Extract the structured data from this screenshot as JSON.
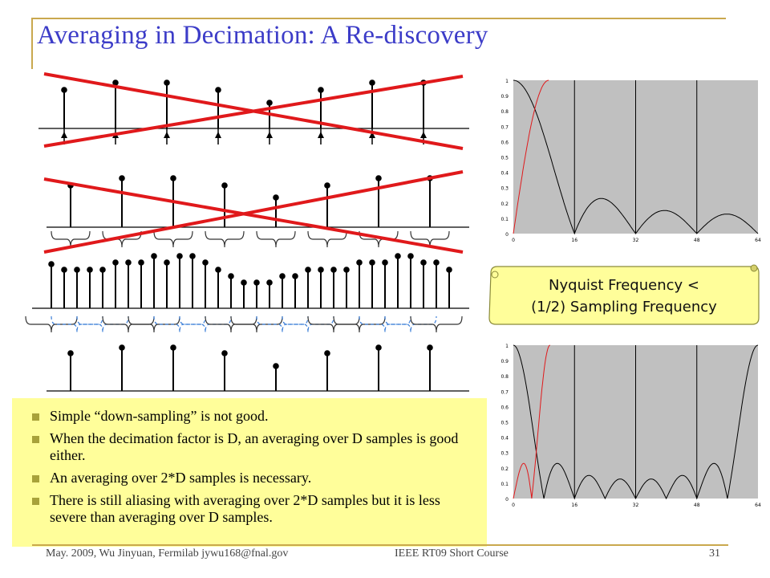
{
  "slide": {
    "title": "Averaging in Decimation: A Re-discovery"
  },
  "callout": {
    "line1": "Nyquist Frequency <",
    "line2": "(1/2) Sampling Frequency"
  },
  "plots": [
    {
      "y_ticks": [
        "0",
        "0.1",
        "0.2",
        "0.3",
        "0.4",
        "0.5",
        "0.6",
        "0.7",
        "0.8",
        "0.9",
        "1"
      ],
      "x_ticks": [
        "0",
        "16",
        "32",
        "48",
        "64"
      ]
    },
    {
      "y_ticks": [
        "0",
        "0.1",
        "0.2",
        "0.3",
        "0.4",
        "0.5",
        "0.6",
        "0.7",
        "0.8",
        "0.9",
        "1"
      ],
      "x_ticks": [
        "0",
        "16",
        "32",
        "48",
        "64"
      ]
    }
  ],
  "bullets": [
    "Simple “down-sampling” is not good.",
    "When the decimation factor is D, an averaging over D samples is good either.",
    "An averaging over 2*D samples is necessary.",
    "There is still aliasing with averaging over 2*D samples but it is less severe than averaging over D samples."
  ],
  "footer": {
    "left": "May. 2009, Wu Jinyuan, Fermilab jywu168@fnal.gov",
    "center": "IEEE RT09 Short Course",
    "page": "31"
  },
  "colors": {
    "title": "#3c3cc8",
    "cross": "#e0191b",
    "plot_bg": "#c0c0c0",
    "note_bg": "#fffe9a",
    "callout_bg": "#fffe9a",
    "frame": "#c9a84e",
    "dashed": "#3c7fd8"
  }
}
